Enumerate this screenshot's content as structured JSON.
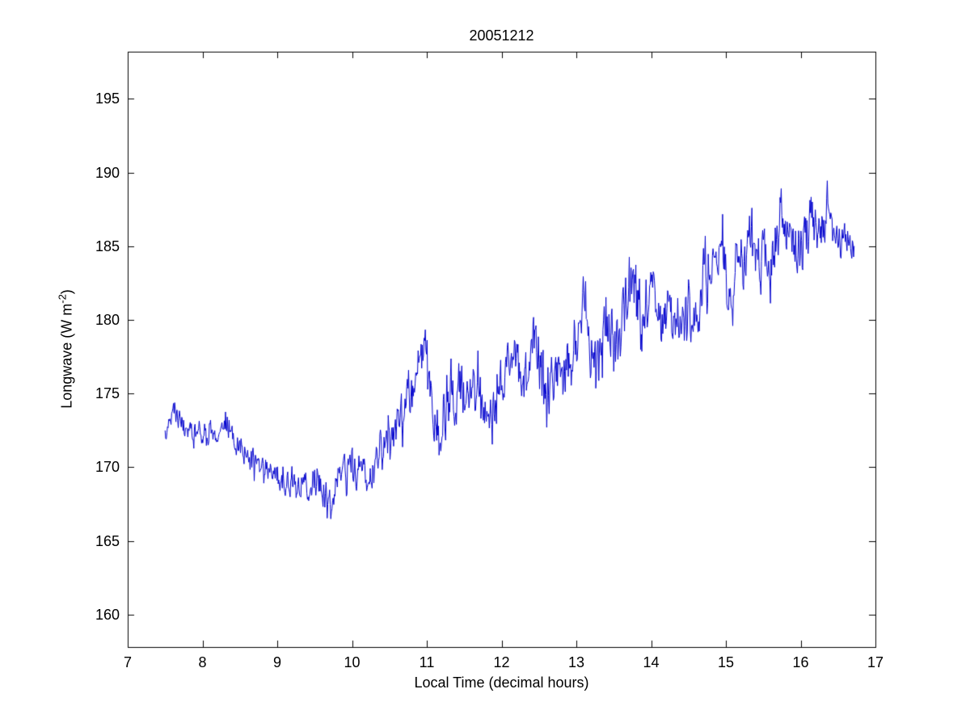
{
  "figure": {
    "background": "#ffffff",
    "title": "20051212",
    "xlabel": "Local Time (decimal hours)",
    "ylabel": {
      "prefix": "Longwave (W m",
      "sup": "-2",
      "suffix": ")"
    },
    "axis_color": "#000000"
  },
  "chart_data": {
    "type": "line",
    "title": "20051212",
    "xlabel": "Local Time (decimal hours)",
    "ylabel": "Longwave (W m^-2)",
    "xlim": [
      7,
      17
    ],
    "ylim": [
      157.8,
      198.2
    ],
    "x_ticks": [
      7,
      8,
      9,
      10,
      11,
      12,
      13,
      14,
      15,
      16,
      17
    ],
    "y_ticks": [
      160,
      165,
      170,
      175,
      180,
      185,
      190,
      195
    ],
    "grid": false,
    "legend_position": "none",
    "line_color": "#0000CD",
    "line_width": 1,
    "series": [
      {
        "name": "longwave",
        "x_start": 7.5,
        "x_end": 16.72,
        "sample_dt": 0.008,
        "noise_seed": 20051212,
        "trend_points": [
          [
            7.5,
            172.3
          ],
          [
            7.55,
            173.0
          ],
          [
            7.6,
            173.6
          ],
          [
            7.63,
            174.2
          ],
          [
            7.66,
            173.4
          ],
          [
            7.7,
            173.0
          ],
          [
            7.75,
            172.8
          ],
          [
            7.8,
            172.6
          ],
          [
            7.85,
            172.5
          ],
          [
            7.9,
            172.4
          ],
          [
            8.0,
            172.3
          ],
          [
            8.1,
            172.2
          ],
          [
            8.2,
            172.3
          ],
          [
            8.28,
            172.8
          ],
          [
            8.35,
            172.5
          ],
          [
            8.45,
            171.8
          ],
          [
            8.55,
            171.0
          ],
          [
            8.65,
            170.4
          ],
          [
            8.75,
            170.1
          ],
          [
            8.85,
            169.7
          ],
          [
            8.95,
            169.8
          ],
          [
            9.05,
            169.5
          ],
          [
            9.15,
            169.0
          ],
          [
            9.25,
            168.6
          ],
          [
            9.3,
            167.4
          ],
          [
            9.35,
            168.8
          ],
          [
            9.45,
            169.4
          ],
          [
            9.55,
            169.0
          ],
          [
            9.62,
            168.4
          ],
          [
            9.68,
            167.2
          ],
          [
            9.72,
            168.0
          ],
          [
            9.8,
            169.3
          ],
          [
            9.9,
            169.8
          ],
          [
            10.0,
            170.0
          ],
          [
            10.1,
            169.8
          ],
          [
            10.2,
            169.1
          ],
          [
            10.3,
            169.9
          ],
          [
            10.4,
            171.3
          ],
          [
            10.47,
            172.8
          ],
          [
            10.55,
            171.8
          ],
          [
            10.65,
            172.6
          ],
          [
            10.75,
            173.9
          ],
          [
            10.85,
            175.5
          ],
          [
            10.92,
            176.5
          ],
          [
            10.97,
            178.6
          ],
          [
            11.02,
            175.8
          ],
          [
            11.08,
            173.6
          ],
          [
            11.15,
            172.9
          ],
          [
            11.25,
            173.6
          ],
          [
            11.35,
            174.8
          ],
          [
            11.45,
            174.9
          ],
          [
            11.52,
            174.0
          ],
          [
            11.6,
            175.6
          ],
          [
            11.68,
            175.9
          ],
          [
            11.78,
            174.2
          ],
          [
            11.85,
            173.8
          ],
          [
            11.95,
            175.4
          ],
          [
            12.05,
            176.6
          ],
          [
            12.15,
            177.0
          ],
          [
            12.25,
            176.4
          ],
          [
            12.32,
            175.4
          ],
          [
            12.4,
            178.0
          ],
          [
            12.44,
            180.6
          ],
          [
            12.5,
            176.8
          ],
          [
            12.58,
            175.2
          ],
          [
            12.68,
            175.6
          ],
          [
            12.78,
            176.2
          ],
          [
            12.88,
            176.9
          ],
          [
            12.98,
            178.2
          ],
          [
            13.05,
            179.6
          ],
          [
            13.11,
            181.8
          ],
          [
            13.18,
            178.4
          ],
          [
            13.25,
            177.4
          ],
          [
            13.33,
            178.6
          ],
          [
            13.4,
            180.0
          ],
          [
            13.48,
            178.8
          ],
          [
            13.56,
            179.0
          ],
          [
            13.64,
            180.2
          ],
          [
            13.72,
            182.0
          ],
          [
            13.76,
            183.6
          ],
          [
            13.82,
            180.6
          ],
          [
            13.9,
            179.8
          ],
          [
            13.98,
            181.2
          ],
          [
            14.05,
            182.2
          ],
          [
            14.12,
            179.2
          ],
          [
            14.2,
            180.0
          ],
          [
            14.28,
            181.2
          ],
          [
            14.36,
            180.2
          ],
          [
            14.44,
            179.4
          ],
          [
            14.52,
            181.0
          ],
          [
            14.6,
            180.0
          ],
          [
            14.68,
            181.6
          ],
          [
            14.76,
            183.2
          ],
          [
            14.84,
            184.2
          ],
          [
            14.92,
            184.9
          ],
          [
            15.0,
            183.6
          ],
          [
            15.08,
            181.6
          ],
          [
            15.16,
            182.8
          ],
          [
            15.24,
            184.4
          ],
          [
            15.32,
            185.4
          ],
          [
            15.4,
            183.9
          ],
          [
            15.48,
            184.8
          ],
          [
            15.56,
            183.4
          ],
          [
            15.64,
            184.6
          ],
          [
            15.72,
            186.4
          ],
          [
            15.76,
            187.4
          ],
          [
            15.82,
            185.2
          ],
          [
            15.9,
            185.8
          ],
          [
            15.98,
            184.9
          ],
          [
            16.06,
            186.2
          ],
          [
            16.14,
            186.6
          ],
          [
            16.22,
            185.6
          ],
          [
            16.3,
            186.0
          ],
          [
            16.38,
            187.4
          ],
          [
            16.46,
            185.4
          ],
          [
            16.54,
            185.2
          ],
          [
            16.6,
            185.9
          ],
          [
            16.66,
            184.9
          ],
          [
            16.72,
            184.6
          ]
        ],
        "noise_profile": [
          [
            7.5,
            0.45
          ],
          [
            8.3,
            0.5
          ],
          [
            9.0,
            0.6
          ],
          [
            9.6,
            0.7
          ],
          [
            10.2,
            0.7
          ],
          [
            10.8,
            1.0
          ],
          [
            11.3,
            1.1
          ],
          [
            12.0,
            1.1
          ],
          [
            12.6,
            1.2
          ],
          [
            13.2,
            1.2
          ],
          [
            13.8,
            1.1
          ],
          [
            14.4,
            1.1
          ],
          [
            15.0,
            1.2
          ],
          [
            15.6,
            1.2
          ],
          [
            16.2,
            1.0
          ],
          [
            16.72,
            0.6
          ]
        ]
      }
    ]
  }
}
